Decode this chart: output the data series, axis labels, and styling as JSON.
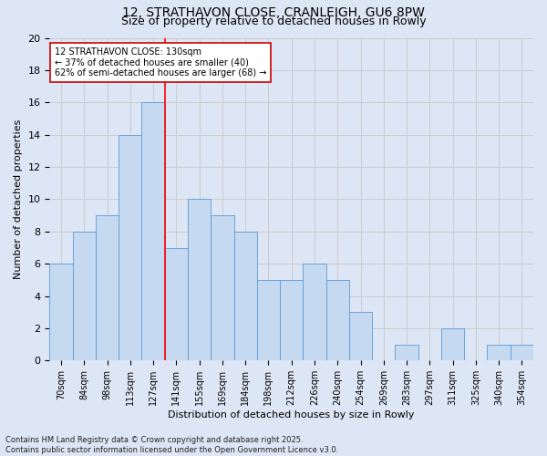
{
  "title_line1": "12, STRATHAVON CLOSE, CRANLEIGH, GU6 8PW",
  "title_line2": "Size of property relative to detached houses in Rowly",
  "xlabel": "Distribution of detached houses by size in Rowly",
  "ylabel": "Number of detached properties",
  "bins": [
    "70sqm",
    "84sqm",
    "98sqm",
    "113sqm",
    "127sqm",
    "141sqm",
    "155sqm",
    "169sqm",
    "184sqm",
    "198sqm",
    "212sqm",
    "226sqm",
    "240sqm",
    "254sqm",
    "269sqm",
    "283sqm",
    "297sqm",
    "311sqm",
    "325sqm",
    "340sqm",
    "354sqm"
  ],
  "values": [
    6,
    8,
    9,
    14,
    16,
    7,
    10,
    9,
    8,
    5,
    5,
    6,
    5,
    3,
    0,
    1,
    0,
    2,
    0,
    1,
    1
  ],
  "bar_color": "#c5d9f0",
  "bar_edge_color": "#5b9bd5",
  "red_line_index": 4.5,
  "annotation_text_line1": "12 STRATHAVON CLOSE: 130sqm",
  "annotation_text_line2": "← 37% of detached houses are smaller (40)",
  "annotation_text_line3": "62% of semi-detached houses are larger (68) →",
  "annotation_box_color": "#ffffff",
  "annotation_box_edge_color": "#cc0000",
  "grid_color": "#cccccc",
  "background_color": "#dce6f5",
  "ylim": [
    0,
    20
  ],
  "yticks": [
    0,
    2,
    4,
    6,
    8,
    10,
    12,
    14,
    16,
    18,
    20
  ],
  "footer_text": "Contains HM Land Registry data © Crown copyright and database right 2025.\nContains public sector information licensed under the Open Government Licence v3.0.",
  "title1_fontsize": 10,
  "title2_fontsize": 9,
  "xlabel_fontsize": 8,
  "ylabel_fontsize": 8,
  "tick_fontsize": 7,
  "annot_fontsize": 7,
  "footer_fontsize": 6
}
